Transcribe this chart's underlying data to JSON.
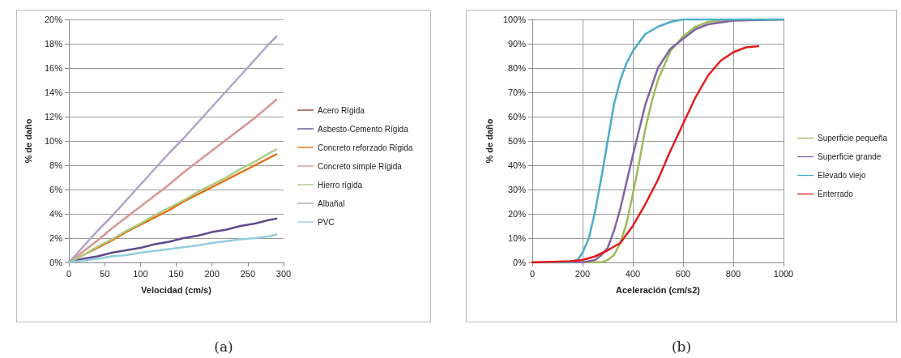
{
  "chart_data": [
    {
      "type": "line",
      "xlabel": "Velocidad (cm/s)",
      "ylabel": "% de daño",
      "annotations": [
        "(a)"
      ],
      "x": [
        0,
        20,
        40,
        60,
        80,
        100,
        120,
        140,
        160,
        180,
        200,
        220,
        240,
        260,
        280,
        290
      ],
      "xlim": [
        0,
        300
      ],
      "xticks": [
        0,
        50,
        100,
        150,
        200,
        250,
        300
      ],
      "ylim": [
        0,
        20
      ],
      "yticks": [
        {
          "value": 0,
          "label": "0%"
        },
        {
          "value": 2,
          "label": "2%"
        },
        {
          "value": 4,
          "label": "4%"
        },
        {
          "value": 6,
          "label": "6%"
        },
        {
          "value": 8,
          "label": "8%"
        },
        {
          "value": 10,
          "label": "10%"
        },
        {
          "value": 12,
          "label": "12%"
        },
        {
          "value": 14,
          "label": "14%"
        },
        {
          "value": 16,
          "label": "16%"
        },
        {
          "value": 18,
          "label": "18%"
        },
        {
          "value": 20,
          "label": "20%"
        }
      ],
      "grid": "y",
      "legend": "right",
      "marker": "none",
      "line_style": "solid",
      "series": [
        {
          "name": "Acero Rígida",
          "color": "#953735",
          "values": [
            null,
            null,
            null,
            null,
            null,
            null,
            null,
            null,
            null,
            null,
            null,
            null,
            null,
            null,
            null,
            null
          ]
        },
        {
          "name": "Asbesto-Cemento Rígida",
          "color": "#604a8b",
          "values": [
            0,
            0.3,
            0.5,
            0.8,
            1.0,
            1.2,
            1.5,
            1.7,
            2.0,
            2.2,
            2.5,
            2.7,
            3.0,
            3.2,
            3.5,
            3.6
          ]
        },
        {
          "name": "Concreto reforzado Rígida",
          "color": "#e46c0a",
          "values": [
            0,
            0.6,
            1.2,
            1.8,
            2.5,
            3.1,
            3.7,
            4.3,
            5.0,
            5.6,
            6.2,
            6.8,
            7.4,
            8.0,
            8.6,
            8.9
          ]
        },
        {
          "name": "Concreto simple Rígida",
          "color": "#d99694",
          "values": [
            0,
            0.9,
            1.8,
            2.8,
            3.7,
            4.6,
            5.5,
            6.4,
            7.4,
            8.3,
            9.2,
            10.1,
            11.0,
            11.9,
            12.9,
            13.4
          ]
        },
        {
          "name": "Hierro rígida",
          "color": "#a9c982",
          "values": [
            0,
            0.6,
            1.3,
            1.9,
            2.6,
            3.2,
            3.9,
            4.5,
            5.1,
            5.8,
            6.4,
            7.0,
            7.7,
            8.3,
            9.0,
            9.3
          ]
        },
        {
          "name": "Albañal",
          "color": "#b3a2c7",
          "values": [
            0,
            1.3,
            2.6,
            3.8,
            5.1,
            6.4,
            7.7,
            9.0,
            10.2,
            11.5,
            12.8,
            14.1,
            15.4,
            16.7,
            18.0,
            18.6
          ]
        },
        {
          "name": "PVC",
          "color": "#93cddd",
          "values": [
            0,
            0.15,
            0.3,
            0.5,
            0.6,
            0.8,
            0.95,
            1.1,
            1.25,
            1.4,
            1.6,
            1.75,
            1.9,
            2.0,
            2.15,
            2.3
          ]
        }
      ]
    },
    {
      "type": "line",
      "xlabel": "Aceleración (cm/s2)",
      "ylabel": "% de daño",
      "annotations": [
        "(b)"
      ],
      "xlim": [
        0,
        1000
      ],
      "xticks": [
        0,
        200,
        400,
        600,
        800,
        1000
      ],
      "ylim": [
        0,
        100
      ],
      "yticks": [
        {
          "value": 0,
          "label": "0%"
        },
        {
          "value": 10,
          "label": "10%"
        },
        {
          "value": 20,
          "label": "20%"
        },
        {
          "value": 30,
          "label": "30%"
        },
        {
          "value": 40,
          "label": "40%"
        },
        {
          "value": 50,
          "label": "50%"
        },
        {
          "value": 60,
          "label": "60%"
        },
        {
          "value": 70,
          "label": "70%"
        },
        {
          "value": 80,
          "label": "80%"
        },
        {
          "value": 90,
          "label": "90%"
        },
        {
          "value": 100,
          "label": "100%"
        }
      ],
      "grid": true,
      "legend": "right",
      "marker": "none",
      "line_style": "solid",
      "series": [
        {
          "name": "Superficie pequeña",
          "color": "#9bbb59",
          "x": [
            0,
            250,
            280,
            300,
            325,
            350,
            375,
            400,
            425,
            450,
            475,
            500,
            550,
            600,
            650,
            700,
            800,
            1000
          ],
          "values": [
            0,
            0,
            0.2,
            1,
            3,
            8,
            16,
            28,
            41,
            55,
            66,
            75,
            87,
            93,
            97,
            99,
            100,
            100
          ]
        },
        {
          "name": "Superficie grande",
          "color": "#8064a2",
          "x": [
            0,
            200,
            250,
            275,
            300,
            325,
            350,
            375,
            400,
            450,
            500,
            550,
            600,
            650,
            700,
            800,
            1000
          ],
          "values": [
            0,
            0,
            1,
            3,
            6,
            13,
            22,
            33,
            44,
            65,
            80,
            88,
            92,
            96,
            98,
            99.5,
            100
          ]
        },
        {
          "name": "Elevado viejo",
          "color": "#4bacc6",
          "x": [
            0,
            150,
            180,
            200,
            225,
            250,
            275,
            300,
            325,
            350,
            375,
            400,
            450,
            500,
            550,
            600,
            1000
          ],
          "values": [
            0,
            0,
            1,
            4,
            10,
            21,
            35,
            50,
            65,
            75,
            82,
            87,
            94,
            97,
            99,
            100,
            100
          ]
        },
        {
          "name": "Enterrado",
          "color": "#e41a1c",
          "x": [
            0,
            150,
            200,
            250,
            300,
            350,
            400,
            450,
            500,
            550,
            600,
            650,
            700,
            750,
            800,
            850,
            900
          ],
          "values": [
            0,
            0.5,
            1,
            2.5,
            5,
            8,
            15,
            24,
            34,
            46,
            57,
            68,
            77,
            83,
            86.5,
            88.5,
            89
          ]
        }
      ]
    }
  ]
}
